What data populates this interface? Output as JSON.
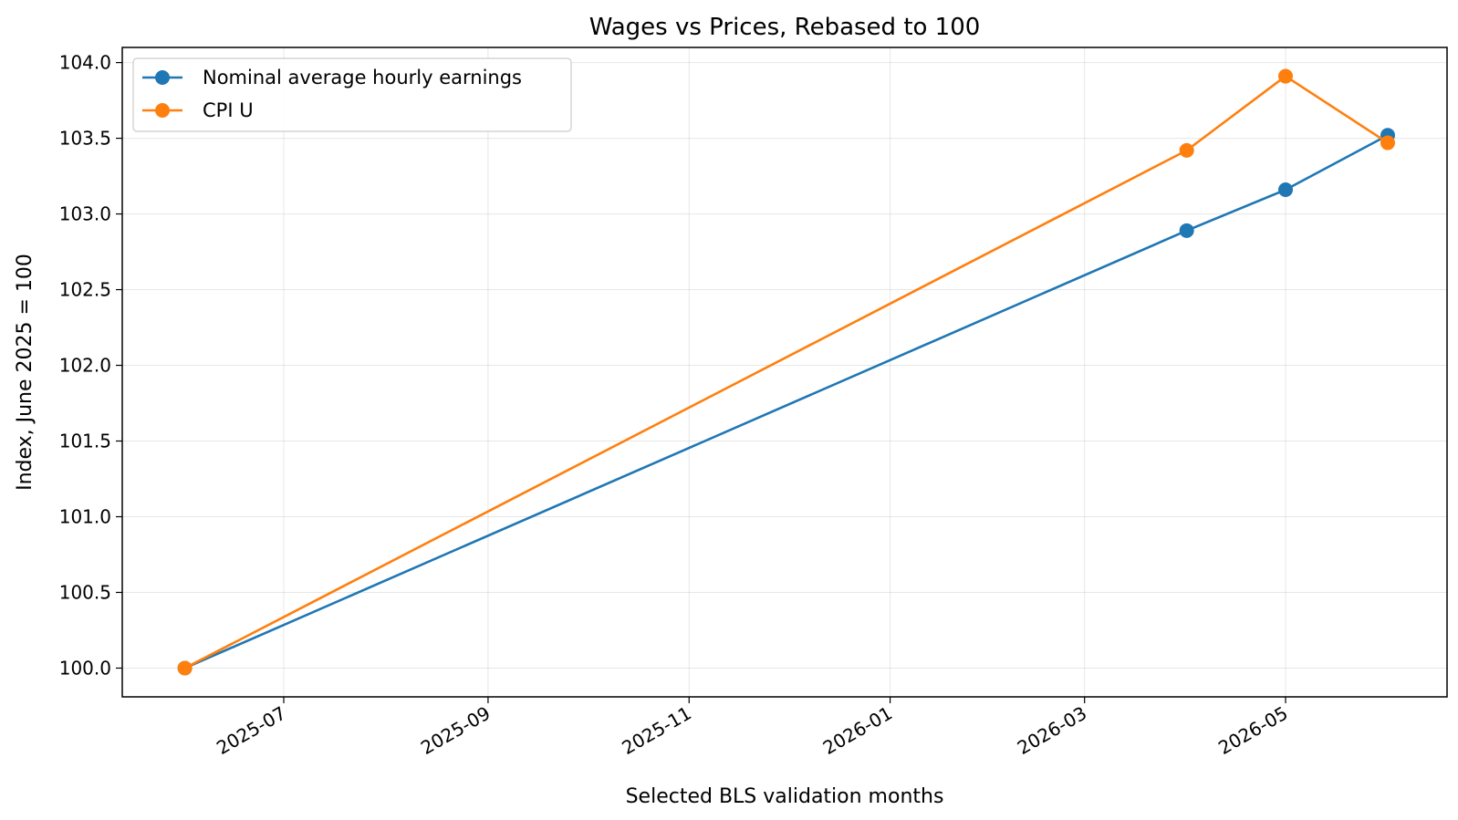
{
  "chart_data": {
    "type": "line",
    "title": "Wages vs Prices, Rebased to 100",
    "xlabel": "Selected BLS validation months",
    "ylabel": "Index, June 2025 = 100",
    "x": [
      "2025-06-01",
      "2026-04-01",
      "2026-05-01",
      "2026-06-01"
    ],
    "series": [
      {
        "name": "Nominal average hourly earnings",
        "color": "#1f77b4",
        "values": [
          100.0,
          102.89,
          103.16,
          103.52
        ]
      },
      {
        "name": "CPI U",
        "color": "#ff7f0e",
        "values": [
          100.0,
          103.42,
          103.91,
          103.47
        ]
      }
    ],
    "x_ticks": [
      "2025-07",
      "2025-09",
      "2025-11",
      "2026-01",
      "2026-03",
      "2026-05"
    ],
    "y_ticks": [
      "100.0",
      "100.5",
      "101.0",
      "101.5",
      "102.0",
      "102.5",
      "103.0",
      "103.5",
      "104.0"
    ],
    "xlim": [
      "2025-05-13",
      "2026-06-19"
    ],
    "ylim": [
      99.81,
      104.1
    ],
    "grid": true,
    "legend_position": "top-left"
  }
}
